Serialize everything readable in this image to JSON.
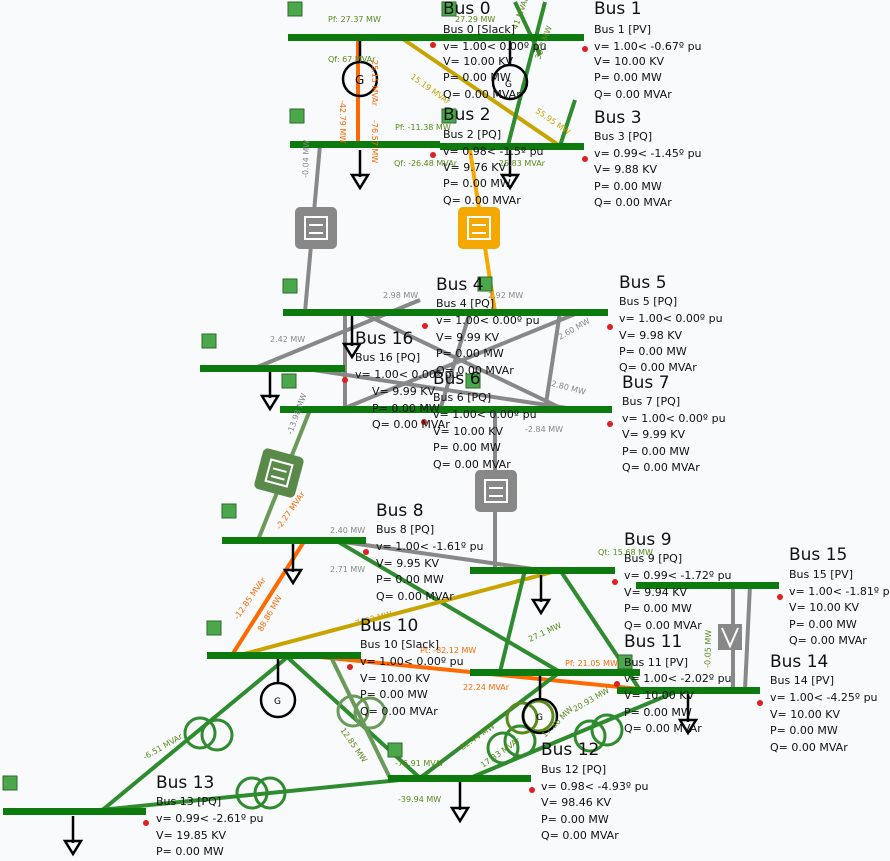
{
  "colors": {
    "bus": "#0d7a0d",
    "line_green": "#2e8b2e",
    "line_gray": "#888888",
    "line_orange": "#ff6a00",
    "line_amber": "#f5a800",
    "line_olive": "#c8a400",
    "flow_text": "#5a8a1a",
    "node_square": "#4aa84a",
    "marker_red": "#e02020"
  },
  "buses": [
    {
      "title": "Bus 0",
      "info": []
    },
    {
      "title": "Bus 1",
      "info": [
        "Bus 1 [PV]",
        "v= 1.00< -0.67º pu",
        "V= 10.00 KV",
        "P= 0.00 MW",
        "Q= 0.00 MVAr"
      ]
    },
    {
      "title": "Bus 2",
      "info": [
        "Bus 2 [PQ]"
      ]
    },
    {
      "title": "Bus 3",
      "info": [
        "Bus 3 [PQ]",
        "v= 0.99< -1.45º pu",
        "V= 9.88 KV",
        "P= 0.00 MW",
        "Q= 0.00 MVAr"
      ]
    },
    {
      "title": "Bus 4",
      "info": [
        "Bus 4 [PQ]",
        "v= 1.00< 0.00º pu",
        "V= 9.99 KV",
        "P= 0.00 MW",
        "Q= 0.00 MVAr"
      ]
    },
    {
      "title": "Bus 5",
      "info": [
        "Bus 5 [PQ]",
        "v= 1.00< 0.00º pu",
        "V= 9.98 KV",
        "P= 0.00 MW",
        "Q= 0.00 MVAr"
      ]
    },
    {
      "title": "Bus 16",
      "info": [
        "Bus 16 [PQ]",
        "v= 1.00< 0.00º pu",
        "V= 9.99 KV",
        "P= 0.00 MW",
        "Q= 0.00 MVAr"
      ]
    },
    {
      "title": "Bus 6",
      "info": [
        "Bus 6 [PQ]",
        "v= 1.00< 0.00º pu",
        "V= 10.00 KV",
        "P= 0.00 MW",
        "Q= 0.00 MVAr"
      ]
    },
    {
      "title": "Bus 7",
      "info": [
        "Bus 7 [PQ]",
        "v= 1.00< 0.00º pu",
        "V= 9.99 KV",
        "P= 0.00 MW",
        "Q= 0.00 MVAr"
      ]
    },
    {
      "title": "Bus 8",
      "info": [
        "Bus 8 [PQ]",
        "v= 1.00< -1.61º pu",
        "V= 9.95 KV",
        "P= 0.00 MW",
        "Q= 0.00 MVAr"
      ]
    },
    {
      "title": "Bus 9",
      "info": [
        "Bus 9 [PQ]",
        "v= 0.99< -1.72º pu",
        "V= 9.94 KV",
        "P= 0.00 MW",
        "Q= 0.00 MVAr"
      ]
    },
    {
      "title": "Bus 15",
      "info": [
        "Bus 15 [PV]",
        "v= 1.00< -1.81º pu",
        "V= 10.00 KV",
        "P= 0.00 MW",
        "Q= 0.00 MVAr"
      ]
    },
    {
      "title": "Bus 10",
      "info": [
        "Bus 10 [Slack]",
        "v= 1.00< 0.00º pu",
        "V= 10.00 KV",
        "P= 0.00 MW",
        "Q= 0.00 MVAr"
      ]
    },
    {
      "title": "Bus 11",
      "info": [
        "Bus 11 [PV]",
        "v= 1.00< -2.02º pu",
        "V= 10.00 KV",
        "P= 0.00 MW",
        "Q= 0.00 MVAr"
      ]
    },
    {
      "title": "Bus 14",
      "info": [
        "Bus 14 [PV]",
        "v= 1.00< -4.25º pu",
        "V= 10.00 KV",
        "P= 0.00 MW",
        "Q= 0.00 MVAr"
      ]
    },
    {
      "title": "Bus 12",
      "info": [
        "Bus 12 [PQ]",
        "v= 0.98< -4.93º pu",
        "V= 98.46 KV",
        "P= 0.00 MW",
        "Q= 0.00 MVAr"
      ]
    },
    {
      "title": "Bus 13",
      "info": [
        "Bus 13 [PQ]",
        "v= 0.99< -2.61º pu",
        "V= 19.85 KV",
        "P= 0.00 MW"
      ]
    }
  ],
  "bus0_info": [
    "Bus 0 [Slack]",
    "v= 1.00< 0.00º pu",
    "V= 10.00 KV",
    "P= 0.00 MW",
    "Q= 0.00 MVAr"
  ],
  "bus2_info": [
    "v= 0.98< -1.5º pu",
    "V= 9.76 KV",
    "P= 0.00 MW",
    "Q= 0.00 MVAr"
  ],
  "flows": [
    {
      "text": "Pf: 27.37 MW",
      "color": "#5a8a1a"
    },
    {
      "text": "27.29 MW",
      "color": "#5a8a1a"
    },
    {
      "text": "Qf: 67 MVAr",
      "color": "#5a8a1a"
    },
    {
      "text": "-42.79 MW",
      "color": "#ff6a00"
    },
    {
      "text": "25.15 MVAr",
      "color": "#ff6a00"
    },
    {
      "text": "-76.57 MW",
      "color": "#ff6a00"
    },
    {
      "text": "15.19 MVAr",
      "color": "#c8a400"
    },
    {
      "text": "41 MVAr",
      "color": "#5a8a1a"
    },
    {
      "text": "39.3 MW",
      "color": "#5a8a1a"
    },
    {
      "text": "55.95 MW",
      "color": "#c8a400"
    },
    {
      "text": "Pf: -11.38 MW",
      "color": "#5a8a1a"
    },
    {
      "text": "Qf: -26.48 MVAr",
      "color": "#5a8a1a"
    },
    {
      "text": "-25.83 MVAr",
      "color": "#5a8a1a"
    },
    {
      "text": "-0.04 MW",
      "color": "#888888"
    },
    {
      "text": "2.92 MW",
      "color": "#888888"
    },
    {
      "text": "2.98 MW",
      "color": "#888888"
    },
    {
      "text": "2.42 MW",
      "color": "#888888"
    },
    {
      "text": "-2.84 MW",
      "color": "#888888"
    },
    {
      "text": "-2.80 MW",
      "color": "#888888"
    },
    {
      "text": "2.60 MW",
      "color": "#888888"
    },
    {
      "text": "-13.98 MW",
      "color": "#888888"
    },
    {
      "text": "-12.85 MVAr",
      "color": "#ff6a00"
    },
    {
      "text": "88.86 MW",
      "color": "#ff6a00"
    },
    {
      "text": "-2.27 MVAr",
      "color": "#ff6a00"
    },
    {
      "text": "2.40 MW",
      "color": "#888888"
    },
    {
      "text": "2.71 MW",
      "color": "#888888"
    },
    {
      "text": "7403 MW",
      "color": "#c8a400"
    },
    {
      "text": "27.1 MW",
      "color": "#5a8a1a"
    },
    {
      "text": "Pt: -82.12 MW",
      "color": "#ff6a00"
    },
    {
      "text": "22.24 MVAr",
      "color": "#ff6a00"
    },
    {
      "text": "Pf: 21.05 MW",
      "color": "#ff6a00"
    },
    {
      "text": "Qt: 15.68 MW",
      "color": "#5a8a1a"
    },
    {
      "text": "-0.05 MW",
      "color": "#5a8a1a"
    },
    {
      "text": "-6.51 MVAr",
      "color": "#5a8a1a"
    },
    {
      "text": "-82.44 MW",
      "color": "#5a8a1a"
    },
    {
      "text": "17.33 MVAr",
      "color": "#5a8a1a"
    },
    {
      "text": "-76.91 MVAr",
      "color": "#5a8a1a"
    },
    {
      "text": "-39.94 MW",
      "color": "#5a8a1a"
    },
    {
      "text": "20.93 MW",
      "color": "#5a8a1a"
    },
    {
      "text": "17.86 MW",
      "color": "#5a8a1a"
    },
    {
      "text": "12.85 MW",
      "color": "#5a8a1a"
    }
  ]
}
